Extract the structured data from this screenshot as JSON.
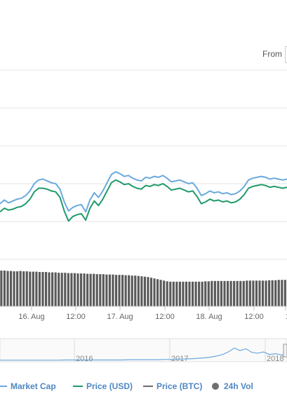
{
  "range_selector": {
    "from_label": "From"
  },
  "colors": {
    "market_cap": "#6aa9de",
    "price_usd": "#1f9a6a",
    "price_btc": "#6b6b6b",
    "volume_bar": "#5a5a5a",
    "volume_dot": "#707070",
    "legend_text": "#4f86c4",
    "grid": "#e6e6e6",
    "navigator_line": "#6aa9de"
  },
  "chart_data": [
    {
      "type": "line",
      "title": "",
      "xlabel": "",
      "ylabel": "",
      "x_ticks": [
        "16. Aug",
        "12:00",
        "17. Aug",
        "12:00",
        "18. Aug",
        "12:00",
        "1"
      ],
      "grid": true,
      "legend_placement": "bottom",
      "series": [
        {
          "name": "Market Cap",
          "values": [
            0.38,
            0.42,
            0.39,
            0.41,
            0.43,
            0.44,
            0.47,
            0.52,
            0.6,
            0.64,
            0.65,
            0.63,
            0.61,
            0.6,
            0.54,
            0.4,
            0.3,
            0.34,
            0.36,
            0.37,
            0.29,
            0.42,
            0.5,
            0.45,
            0.52,
            0.61,
            0.7,
            0.73,
            0.71,
            0.68,
            0.69,
            0.66,
            0.64,
            0.63,
            0.67,
            0.66,
            0.68,
            0.67,
            0.69,
            0.66,
            0.62,
            0.63,
            0.64,
            0.62,
            0.6,
            0.61,
            0.55,
            0.47,
            0.49,
            0.52,
            0.5,
            0.51,
            0.49,
            0.5,
            0.48,
            0.49,
            0.52,
            0.57,
            0.64,
            0.66,
            0.67,
            0.68,
            0.67,
            0.65,
            0.66,
            0.65,
            0.64,
            0.65
          ]
        },
        {
          "name": "Price (USD)",
          "values": [
            0.29,
            0.33,
            0.31,
            0.32,
            0.34,
            0.35,
            0.38,
            0.43,
            0.51,
            0.55,
            0.55,
            0.54,
            0.52,
            0.51,
            0.45,
            0.3,
            0.19,
            0.24,
            0.26,
            0.27,
            0.2,
            0.33,
            0.41,
            0.36,
            0.43,
            0.52,
            0.61,
            0.64,
            0.62,
            0.59,
            0.6,
            0.57,
            0.55,
            0.54,
            0.58,
            0.57,
            0.59,
            0.58,
            0.6,
            0.57,
            0.53,
            0.54,
            0.55,
            0.53,
            0.51,
            0.52,
            0.46,
            0.38,
            0.4,
            0.43,
            0.41,
            0.42,
            0.4,
            0.41,
            0.39,
            0.4,
            0.43,
            0.48,
            0.55,
            0.57,
            0.58,
            0.59,
            0.58,
            0.56,
            0.57,
            0.56,
            0.55,
            0.56
          ]
        }
      ]
    },
    {
      "type": "bar",
      "title": "",
      "series": [
        {
          "name": "24h Vol",
          "values": [
            1.0,
            1.0,
            0.99,
            0.99,
            0.98,
            0.98,
            0.99,
            0.98,
            0.98,
            0.97,
            0.97,
            0.97,
            0.96,
            0.96,
            0.96,
            0.95,
            0.95,
            0.95,
            0.94,
            0.94,
            0.94,
            0.93,
            0.93,
            0.93,
            0.92,
            0.92,
            0.92,
            0.91,
            0.91,
            0.91,
            0.9,
            0.9,
            0.9,
            0.89,
            0.89,
            0.89,
            0.88,
            0.88,
            0.88,
            0.87,
            0.87,
            0.86,
            0.86,
            0.85,
            0.84,
            0.83,
            0.82,
            0.8,
            0.78,
            0.76,
            0.74,
            0.72,
            0.7,
            0.69,
            0.69,
            0.69,
            0.69,
            0.69,
            0.69,
            0.69,
            0.69,
            0.69,
            0.69,
            0.69,
            0.7,
            0.7,
            0.71,
            0.71,
            0.71,
            0.71,
            0.71,
            0.71,
            0.71,
            0.71,
            0.71,
            0.71,
            0.71,
            0.72,
            0.72,
            0.72,
            0.72,
            0.72,
            0.72,
            0.72,
            0.73,
            0.73,
            0.73,
            0.74,
            0.74,
            0.74
          ]
        }
      ]
    },
    {
      "type": "line",
      "title": "",
      "x_ticks": [
        "2016",
        "2017",
        "2018"
      ],
      "series": [
        {
          "name": "Market Cap",
          "values": [
            0.04,
            0.04,
            0.04,
            0.04,
            0.04,
            0.04,
            0.04,
            0.04,
            0.04,
            0.04,
            0.04,
            0.05,
            0.05,
            0.05,
            0.05,
            0.05,
            0.05,
            0.05,
            0.05,
            0.05,
            0.05,
            0.05,
            0.06,
            0.06,
            0.06,
            0.06,
            0.06,
            0.06,
            0.07,
            0.07,
            0.08,
            0.09,
            0.1,
            0.11,
            0.13,
            0.15,
            0.18,
            0.23,
            0.3,
            0.42,
            0.6,
            0.48,
            0.56,
            0.4,
            0.36,
            0.42,
            0.3,
            0.34,
            0.28,
            0.31
          ]
        }
      ]
    }
  ],
  "legend": {
    "items": [
      {
        "label": "Market Cap"
      },
      {
        "label": "Price (USD)"
      },
      {
        "label": "Price (BTC)"
      },
      {
        "label": "24h Vol"
      }
    ]
  }
}
